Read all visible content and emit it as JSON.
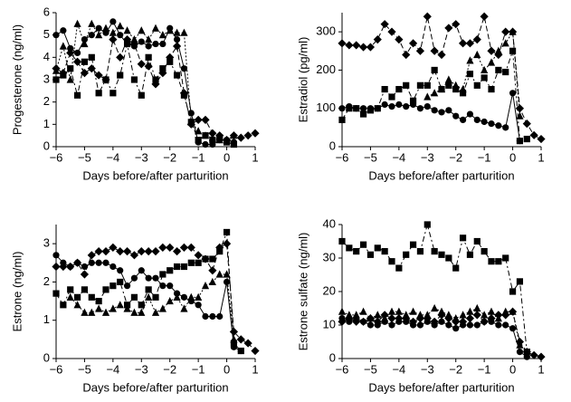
{
  "chart_data": [
    {
      "type": "line",
      "xlabel": "Days before/after parturition",
      "ylabel": "Progesterone (ng/ml)",
      "xlim": [
        -6,
        1
      ],
      "xticks": [
        {
          "value": -6,
          "label": "−6"
        },
        {
          "value": -5,
          "label": "−5"
        },
        {
          "value": -4,
          "label": "−4"
        },
        {
          "value": -3,
          "label": "−3"
        },
        {
          "value": -2,
          "label": "−2"
        },
        {
          "value": -1,
          "label": "−1"
        },
        0,
        1
      ],
      "ylim": [
        0,
        6
      ],
      "yticks": [
        0,
        1,
        2,
        3,
        4,
        5,
        6
      ],
      "x": [
        -6,
        -5.75,
        -5.5,
        -5.25,
        -5,
        -4.75,
        -4.5,
        -4.25,
        -4,
        -3.75,
        -3.5,
        -3.25,
        -3,
        -2.75,
        -2.5,
        -2.25,
        -2,
        -1.75,
        -1.5,
        -1.25,
        -1,
        -0.75,
        -0.5,
        -0.25,
        0,
        0.25,
        0.5,
        0.75,
        1
      ],
      "series": [
        {
          "color": "#000000",
          "marker": "circle",
          "dash": "solid",
          "values": [
            5,
            5.2,
            4.4,
            4.2,
            4.8,
            5,
            5.3,
            5.1,
            5.6,
            5,
            4.6,
            4.5,
            4.7,
            4.5,
            4.6,
            4.6,
            5.3,
            4.8,
            3.5,
            1.5,
            0.2,
            0.1,
            0.1,
            0.3,
            0.3,
            0.2,
            null,
            null,
            null
          ]
        },
        {
          "color": "#000000",
          "marker": "square",
          "dash": "dashdot",
          "values": [
            3,
            3.2,
            3.5,
            2.3,
            3.8,
            4,
            2.4,
            3,
            2.4,
            3.2,
            4.6,
            3,
            2.3,
            4,
            3,
            3.5,
            3.8,
            3.2,
            2.3,
            1.1,
            0.3,
            0.5,
            0.3,
            0.4,
            0.2,
            0.1,
            null,
            null,
            null
          ]
        },
        {
          "color": "#000000",
          "marker": "triangle",
          "dash": "dotted",
          "values": [
            3.4,
            4.5,
            3,
            5.5,
            4.6,
            5.5,
            5,
            5.3,
            5.1,
            5.4,
            5.2,
            4.8,
            5.2,
            4.8,
            5.3,
            5,
            5.2,
            5.1,
            5.1,
            1.1,
            0.7,
            0.5,
            0.4,
            0.3,
            0.3,
            0.5,
            null,
            null,
            null
          ]
        },
        {
          "color": "#000000",
          "marker": "diamond",
          "dash": "dashed",
          "values": [
            3.5,
            3.3,
            4.2,
            3.8,
            3.3,
            3.5,
            3.2,
            3,
            4.8,
            4,
            4.8,
            4.6,
            3.7,
            3.6,
            2.8,
            3.3,
            4,
            4.5,
            2.4,
            1,
            1.2,
            1.2,
            0.6,
            0.5,
            0.3,
            0.5,
            0.4,
            0.5,
            0.6
          ]
        }
      ]
    },
    {
      "type": "line",
      "xlabel": "Days before/after parturition",
      "ylabel": "Estradiol (pg/ml)",
      "xlim": [
        -6,
        1
      ],
      "xticks": [
        {
          "value": -6,
          "label": "−6"
        },
        {
          "value": -5,
          "label": "−5"
        },
        {
          "value": -4,
          "label": "−4"
        },
        {
          "value": -3,
          "label": "−3"
        },
        {
          "value": -2,
          "label": "−2"
        },
        {
          "value": -1,
          "label": "−1"
        },
        0,
        1
      ],
      "ylim": [
        0,
        350
      ],
      "yticks": [
        0,
        100,
        200,
        300
      ],
      "x": [
        -6,
        -5.75,
        -5.5,
        -5.25,
        -5,
        -4.75,
        -4.5,
        -4.25,
        -4,
        -3.75,
        -3.5,
        -3.25,
        -3,
        -2.75,
        -2.5,
        -2.25,
        -2,
        -1.75,
        -1.5,
        -1.25,
        -1,
        -0.75,
        -0.5,
        -0.25,
        0,
        0.25,
        0.5,
        0.75,
        1
      ],
      "series": [
        {
          "color": "#000000",
          "marker": "circle",
          "dash": "solid",
          "values": [
            100,
            105,
            100,
            100,
            100,
            100,
            110,
            105,
            110,
            105,
            110,
            100,
            105,
            95,
            90,
            95,
            80,
            70,
            85,
            70,
            65,
            60,
            55,
            50,
            140,
            15,
            null,
            null,
            null
          ]
        },
        {
          "color": "#000000",
          "marker": "square",
          "dash": "dashdot",
          "values": [
            70,
            100,
            100,
            85,
            95,
            100,
            150,
            130,
            150,
            160,
            120,
            160,
            160,
            200,
            150,
            160,
            150,
            140,
            190,
            160,
            180,
            150,
            200,
            195,
            250,
            15,
            20,
            null,
            null
          ]
        },
        {
          "color": "#000000",
          "marker": "triangle",
          "dash": "dotted",
          "values": [
            null,
            null,
            null,
            null,
            null,
            null,
            null,
            null,
            null,
            null,
            null,
            null,
            130,
            140,
            150,
            175,
            160,
            150,
            225,
            240,
            200,
            220,
            250,
            270,
            300,
            80,
            null,
            null,
            null
          ]
        },
        {
          "color": "#000000",
          "marker": "diamond",
          "dash": "dashed",
          "values": [
            270,
            265,
            265,
            260,
            260,
            280,
            320,
            300,
            280,
            240,
            270,
            250,
            340,
            250,
            240,
            310,
            320,
            270,
            270,
            280,
            340,
            250,
            240,
            300,
            300,
            100,
            60,
            30,
            20
          ]
        }
      ]
    },
    {
      "type": "line",
      "xlabel": "Days before/after parturition",
      "ylabel": "Estrone (ng/ml)",
      "xlim": [
        -6,
        1
      ],
      "xticks": [
        {
          "value": -6,
          "label": "−6"
        },
        {
          "value": -5,
          "label": "−5"
        },
        {
          "value": -4,
          "label": "−4"
        },
        {
          "value": -3,
          "label": "−3"
        },
        {
          "value": -2,
          "label": "−2"
        },
        {
          "value": -1,
          "label": "−1"
        },
        0,
        1
      ],
      "ylim": [
        0,
        3.5
      ],
      "yticks": [
        0,
        1,
        2,
        3
      ],
      "x": [
        -6,
        -5.75,
        -5.5,
        -5.25,
        -5,
        -4.75,
        -4.5,
        -4.25,
        -4,
        -3.75,
        -3.5,
        -3.25,
        -3,
        -2.75,
        -2.5,
        -2.25,
        -2,
        -1.75,
        -1.5,
        -1.25,
        -1,
        -0.75,
        -0.5,
        -0.25,
        0,
        0.25,
        0.5,
        0.75,
        1
      ],
      "series": [
        {
          "color": "#000000",
          "marker": "circle",
          "dash": "solid",
          "values": [
            2.7,
            2.5,
            2.4,
            2.5,
            2.4,
            2.5,
            2.5,
            2.5,
            2.4,
            2.3,
            1.9,
            2.1,
            2.3,
            2.1,
            2.1,
            1.9,
            1.9,
            1.7,
            1.6,
            1.5,
            1.4,
            1.1,
            1.1,
            1.1,
            2,
            0.3,
            0.2,
            null,
            null
          ]
        },
        {
          "color": "#000000",
          "marker": "square",
          "dash": "dashdot",
          "values": [
            1.7,
            1.4,
            1.8,
            1.6,
            1.8,
            1.6,
            1.5,
            1.8,
            1.9,
            2,
            1.4,
            1.6,
            1.4,
            1.8,
            1.6,
            2.2,
            2.3,
            2.4,
            2.4,
            2.5,
            2.5,
            2.6,
            2.6,
            2.8,
            3.3,
            0.4,
            0.2,
            null,
            null
          ]
        },
        {
          "color": "#000000",
          "marker": "triangle",
          "dash": "dotted",
          "values": [
            null,
            null,
            1.6,
            1.4,
            1.2,
            1.2,
            1.3,
            1.2,
            1.3,
            1.4,
            1.3,
            1.2,
            1.2,
            1.6,
            1.2,
            1.3,
            1.5,
            1.6,
            1.3,
            1.6,
            1.6,
            1.9,
            2,
            2.2,
            2.2,
            0.5,
            null,
            null,
            null
          ]
        },
        {
          "color": "#000000",
          "marker": "diamond",
          "dash": "dashed",
          "values": [
            2.4,
            2.4,
            2.4,
            2.5,
            2.2,
            2.7,
            2.8,
            2.8,
            2.9,
            2.8,
            2.8,
            2.7,
            2.8,
            2.8,
            2.8,
            2.9,
            2.9,
            2.8,
            2.9,
            2.9,
            2.7,
            2.6,
            2.3,
            2.9,
            3,
            0.7,
            0.5,
            0.4,
            0.2
          ]
        }
      ]
    },
    {
      "type": "line",
      "xlabel": "Days before/after parturition",
      "ylabel": "Estrone sulfate (ng/ml)",
      "xlim": [
        -6,
        1
      ],
      "xticks": [
        {
          "value": -6,
          "label": "−6"
        },
        {
          "value": -5,
          "label": "−5"
        },
        {
          "value": -4,
          "label": "−4"
        },
        {
          "value": -3,
          "label": "−3"
        },
        {
          "value": -2,
          "label": "−2"
        },
        {
          "value": -1,
          "label": "−1"
        },
        0,
        1
      ],
      "ylim": [
        0,
        40
      ],
      "yticks": [
        0,
        10,
        20,
        30,
        40
      ],
      "x": [
        -6,
        -5.75,
        -5.5,
        -5.25,
        -5,
        -4.75,
        -4.5,
        -4.25,
        -4,
        -3.75,
        -3.5,
        -3.25,
        -3,
        -2.75,
        -2.5,
        -2.25,
        -2,
        -1.75,
        -1.5,
        -1.25,
        -1,
        -0.75,
        -0.5,
        -0.25,
        0,
        0.25,
        0.5,
        0.75,
        1
      ],
      "series": [
        {
          "color": "#000000",
          "marker": "circle",
          "dash": "solid",
          "values": [
            12,
            11,
            12,
            11,
            10,
            10,
            11,
            10,
            11,
            11,
            10,
            10,
            11,
            10,
            11,
            10,
            9,
            10,
            10,
            10,
            11,
            11,
            10,
            10,
            9,
            2,
            0.5,
            null,
            null
          ]
        },
        {
          "color": "#000000",
          "marker": "square",
          "dash": "dashdot",
          "values": [
            35,
            33,
            32,
            34,
            31,
            33,
            32,
            29,
            27,
            31,
            34,
            32,
            40,
            32,
            31,
            30,
            27,
            36,
            31,
            35,
            32,
            29,
            29,
            30,
            20,
            23,
            2,
            null,
            null
          ]
        },
        {
          "color": "#000000",
          "marker": "triangle",
          "dash": "dotted",
          "values": [
            14,
            13,
            13,
            14,
            12,
            13,
            12,
            14,
            14,
            13,
            14,
            13,
            13,
            15,
            14,
            13,
            12,
            13,
            14,
            15,
            13,
            14,
            12,
            14,
            14,
            4,
            null,
            null,
            null
          ]
        },
        {
          "color": "#000000",
          "marker": "diamond",
          "dash": "dashed",
          "values": [
            11,
            12,
            11,
            11,
            12,
            11,
            13,
            12,
            12,
            12,
            11,
            12,
            12,
            11,
            13,
            12,
            11,
            11,
            12,
            13,
            11,
            12,
            13,
            13,
            14,
            5,
            2,
            1,
            0.5
          ]
        }
      ]
    }
  ]
}
